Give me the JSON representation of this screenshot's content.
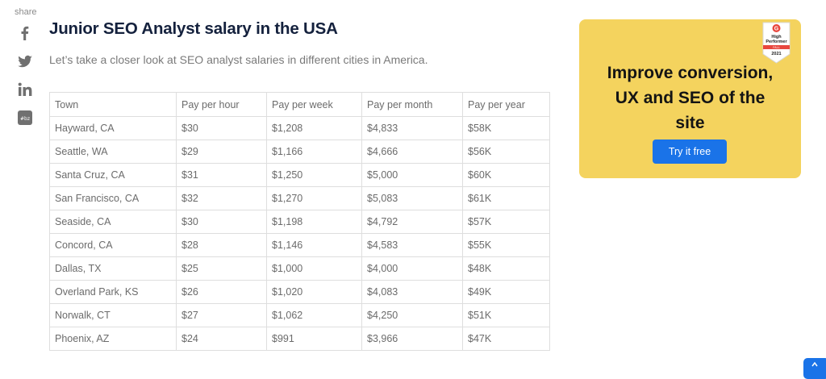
{
  "share": {
    "label": "share",
    "icons": [
      "facebook-icon",
      "twitter-icon",
      "linkedin-icon",
      "social-icon"
    ]
  },
  "article": {
    "title": "Junior SEO Analyst salary in the USA",
    "intro": "Let’s take a closer look at SEO analyst salaries in different cities in America."
  },
  "table": {
    "headers": [
      "Town",
      "Pay per hour",
      "Pay per week",
      "Pay per month",
      "Pay per year"
    ],
    "rows": [
      [
        "Hayward, CA",
        "$30",
        "$1,208",
        "$4,833",
        "$58K"
      ],
      [
        "Seattle, WA",
        "$29",
        "$1,166",
        "$4,666",
        "$56K"
      ],
      [
        "Santa Cruz, CA",
        "$31",
        "$1,250",
        "$5,000",
        "$60K"
      ],
      [
        "San Francisco, CA",
        "$32",
        "$1,270",
        "$5,083",
        "$61K"
      ],
      [
        "Seaside, CA",
        "$30",
        "$1,198",
        "$4,792",
        "$57K"
      ],
      [
        "Concord, CA",
        "$28",
        "$1,146",
        "$4,583",
        "$55K"
      ],
      [
        "Dallas, TX",
        "$25",
        "$1,000",
        "$4,000",
        "$48K"
      ],
      [
        "Overland Park, KS",
        "$26",
        "$1,020",
        "$4,083",
        "$49K"
      ],
      [
        "Norwalk, CT",
        "$27",
        "$1,062",
        "$4,250",
        "$51K"
      ],
      [
        "Phoenix, AZ",
        "$24",
        "$991",
        "$3,966",
        "$47K"
      ]
    ]
  },
  "promo": {
    "line1": "Improve conversion,",
    "line2": "UX and SEO of the",
    "line3": "site",
    "button_label": "Try it free",
    "background": "#f4d35e",
    "button_color": "#1a73e8",
    "badge": {
      "logo": "G",
      "line1": "High",
      "line2": "Performer",
      "season": "FALL",
      "year": "2021"
    }
  },
  "colors": {
    "title": "#14213d",
    "accent": "#1a73e8",
    "badge_red": "#e8473e"
  }
}
